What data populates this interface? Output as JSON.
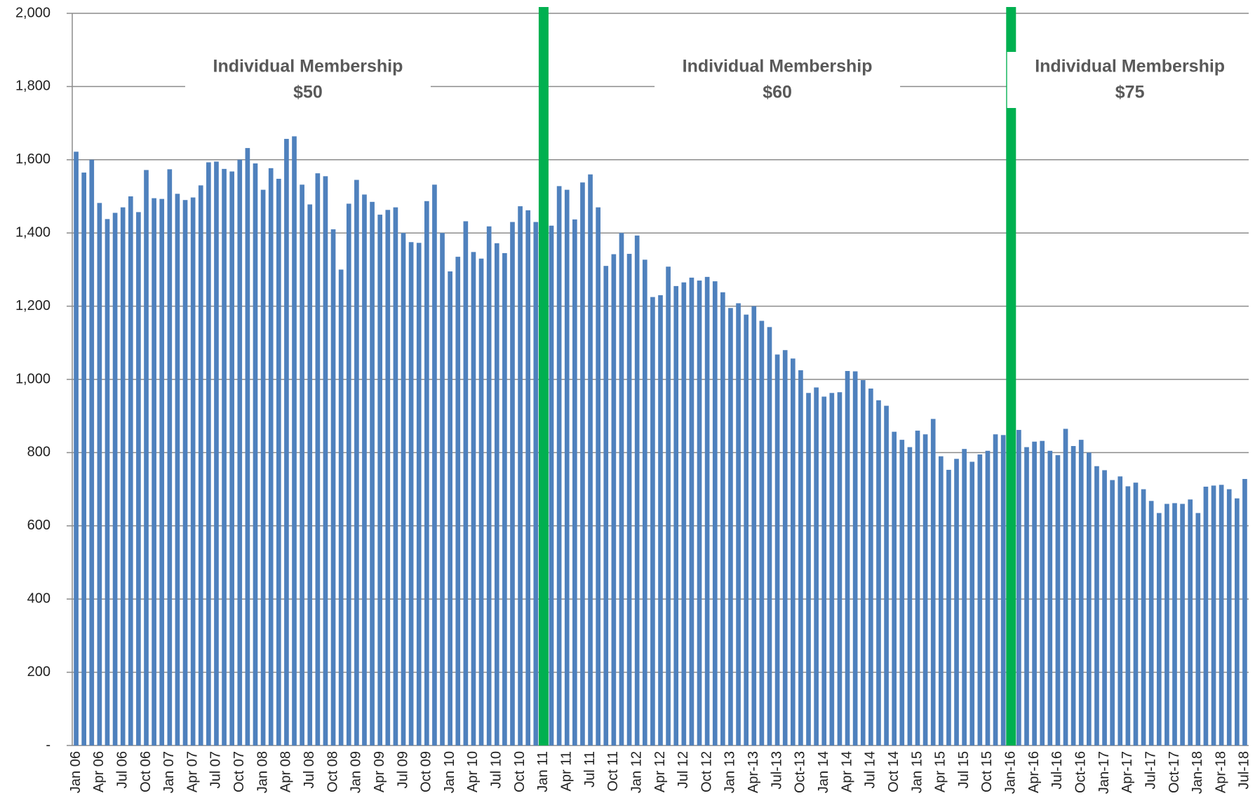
{
  "chart_data": {
    "type": "bar",
    "categories": [
      "Jan 06",
      null,
      null,
      "Apr 06",
      null,
      null,
      "Jul 06",
      null,
      null,
      "Oct 06",
      null,
      null,
      "Jan 07",
      null,
      null,
      "Apr 07",
      null,
      null,
      "Jul 07",
      null,
      null,
      "Oct 07",
      null,
      null,
      "Jan 08",
      null,
      null,
      "Apr 08",
      null,
      null,
      "Jul 08",
      null,
      null,
      "Oct 08",
      null,
      null,
      "Jan 09",
      null,
      null,
      "Apr 09",
      null,
      null,
      "Jul 09",
      null,
      null,
      "Oct 09",
      null,
      null,
      "Jan 10",
      null,
      null,
      "Apr 10",
      null,
      null,
      "Jul 10",
      null,
      null,
      "Oct 10",
      null,
      null,
      "Jan 11",
      null,
      null,
      "Apr 11",
      null,
      null,
      "Jul 11",
      null,
      null,
      "Oct 11",
      null,
      null,
      "Jan 12",
      null,
      null,
      "Apr 12",
      null,
      null,
      "Jul 12",
      null,
      null,
      "Oct 12",
      null,
      null,
      "Jan 13",
      null,
      null,
      "Apr-13",
      null,
      null,
      "Jul-13",
      null,
      null,
      "Oct-13",
      null,
      null,
      "Jan 14",
      null,
      null,
      "Apr 14",
      null,
      null,
      "Jul 14",
      null,
      null,
      "Oct 14",
      null,
      null,
      "Jan 15",
      null,
      null,
      "Apr 15",
      null,
      null,
      "Jul 15",
      null,
      null,
      "Oct 15",
      null,
      null,
      "Jan-16",
      null,
      null,
      "Apr-16",
      null,
      null,
      "Jul-16",
      null,
      null,
      "Oct-16",
      null,
      null,
      "Jan-17",
      null,
      null,
      "Apr-17",
      null,
      null,
      "Jul-17",
      null,
      null,
      "Oct-17",
      null,
      null,
      "Jan-18",
      null,
      null,
      "Apr-18",
      null,
      null,
      "Jul-18"
    ],
    "values": [
      1622,
      1565,
      1600,
      1482,
      1438,
      1455,
      1470,
      1500,
      1457,
      1572,
      1495,
      1493,
      1574,
      1507,
      1490,
      1497,
      1530,
      1593,
      1595,
      1575,
      1568,
      1600,
      1632,
      1590,
      1518,
      1577,
      1548,
      1657,
      1664,
      1532,
      1478,
      1563,
      1555,
      1410,
      1300,
      1480,
      1545,
      1505,
      1485,
      1450,
      1463,
      1470,
      1400,
      1375,
      1373,
      1487,
      1532,
      1400,
      1295,
      1335,
      1432,
      1348,
      1330,
      1418,
      1372,
      1345,
      1430,
      1473,
      1462,
      1430,
      1455,
      1420,
      1528,
      1518,
      1437,
      1538,
      1560,
      1470,
      1310,
      1342,
      1400,
      1343,
      1393,
      1327,
      1225,
      1230,
      1308,
      1255,
      1265,
      1278,
      1270,
      1280,
      1268,
      1238,
      1195,
      1208,
      1177,
      1200,
      1160,
      1143,
      1068,
      1080,
      1057,
      1025,
      963,
      978,
      953,
      963,
      965,
      1023,
      1022,
      998,
      975,
      943,
      928,
      857,
      835,
      815,
      860,
      850,
      892,
      790,
      753,
      783,
      810,
      775,
      795,
      805,
      850,
      848,
      850,
      862,
      815,
      830,
      832,
      805,
      793,
      865,
      818,
      835,
      800,
      763,
      752,
      725,
      735,
      708,
      718,
      700,
      668,
      635,
      660,
      662,
      660,
      672,
      635,
      707,
      710,
      712,
      700,
      675,
      728
    ],
    "color": "#4f81bd",
    "ylim": [
      0,
      2000
    ],
    "yticks": [
      {
        "value": 0,
        "label": "-"
      },
      200,
      400,
      600,
      800,
      {
        "value": 1000,
        "label": "1,000"
      },
      {
        "value": 1200,
        "label": "1,200"
      },
      {
        "value": 1400,
        "label": "1,400"
      },
      {
        "value": 1600,
        "label": "1,600"
      },
      {
        "value": 1800,
        "label": "1,800"
      },
      {
        "value": 2000,
        "label": "2,000"
      }
    ],
    "grid": true,
    "markers": [
      {
        "x": "Jan 11",
        "color": "#00b050"
      },
      {
        "x": "Jan-16",
        "color": "#00b050"
      }
    ],
    "annotations": [
      [
        "Individual Membership",
        "$50"
      ],
      [
        "Individual Membership",
        "$60"
      ],
      [
        "Individual Membership",
        "$75"
      ]
    ]
  }
}
